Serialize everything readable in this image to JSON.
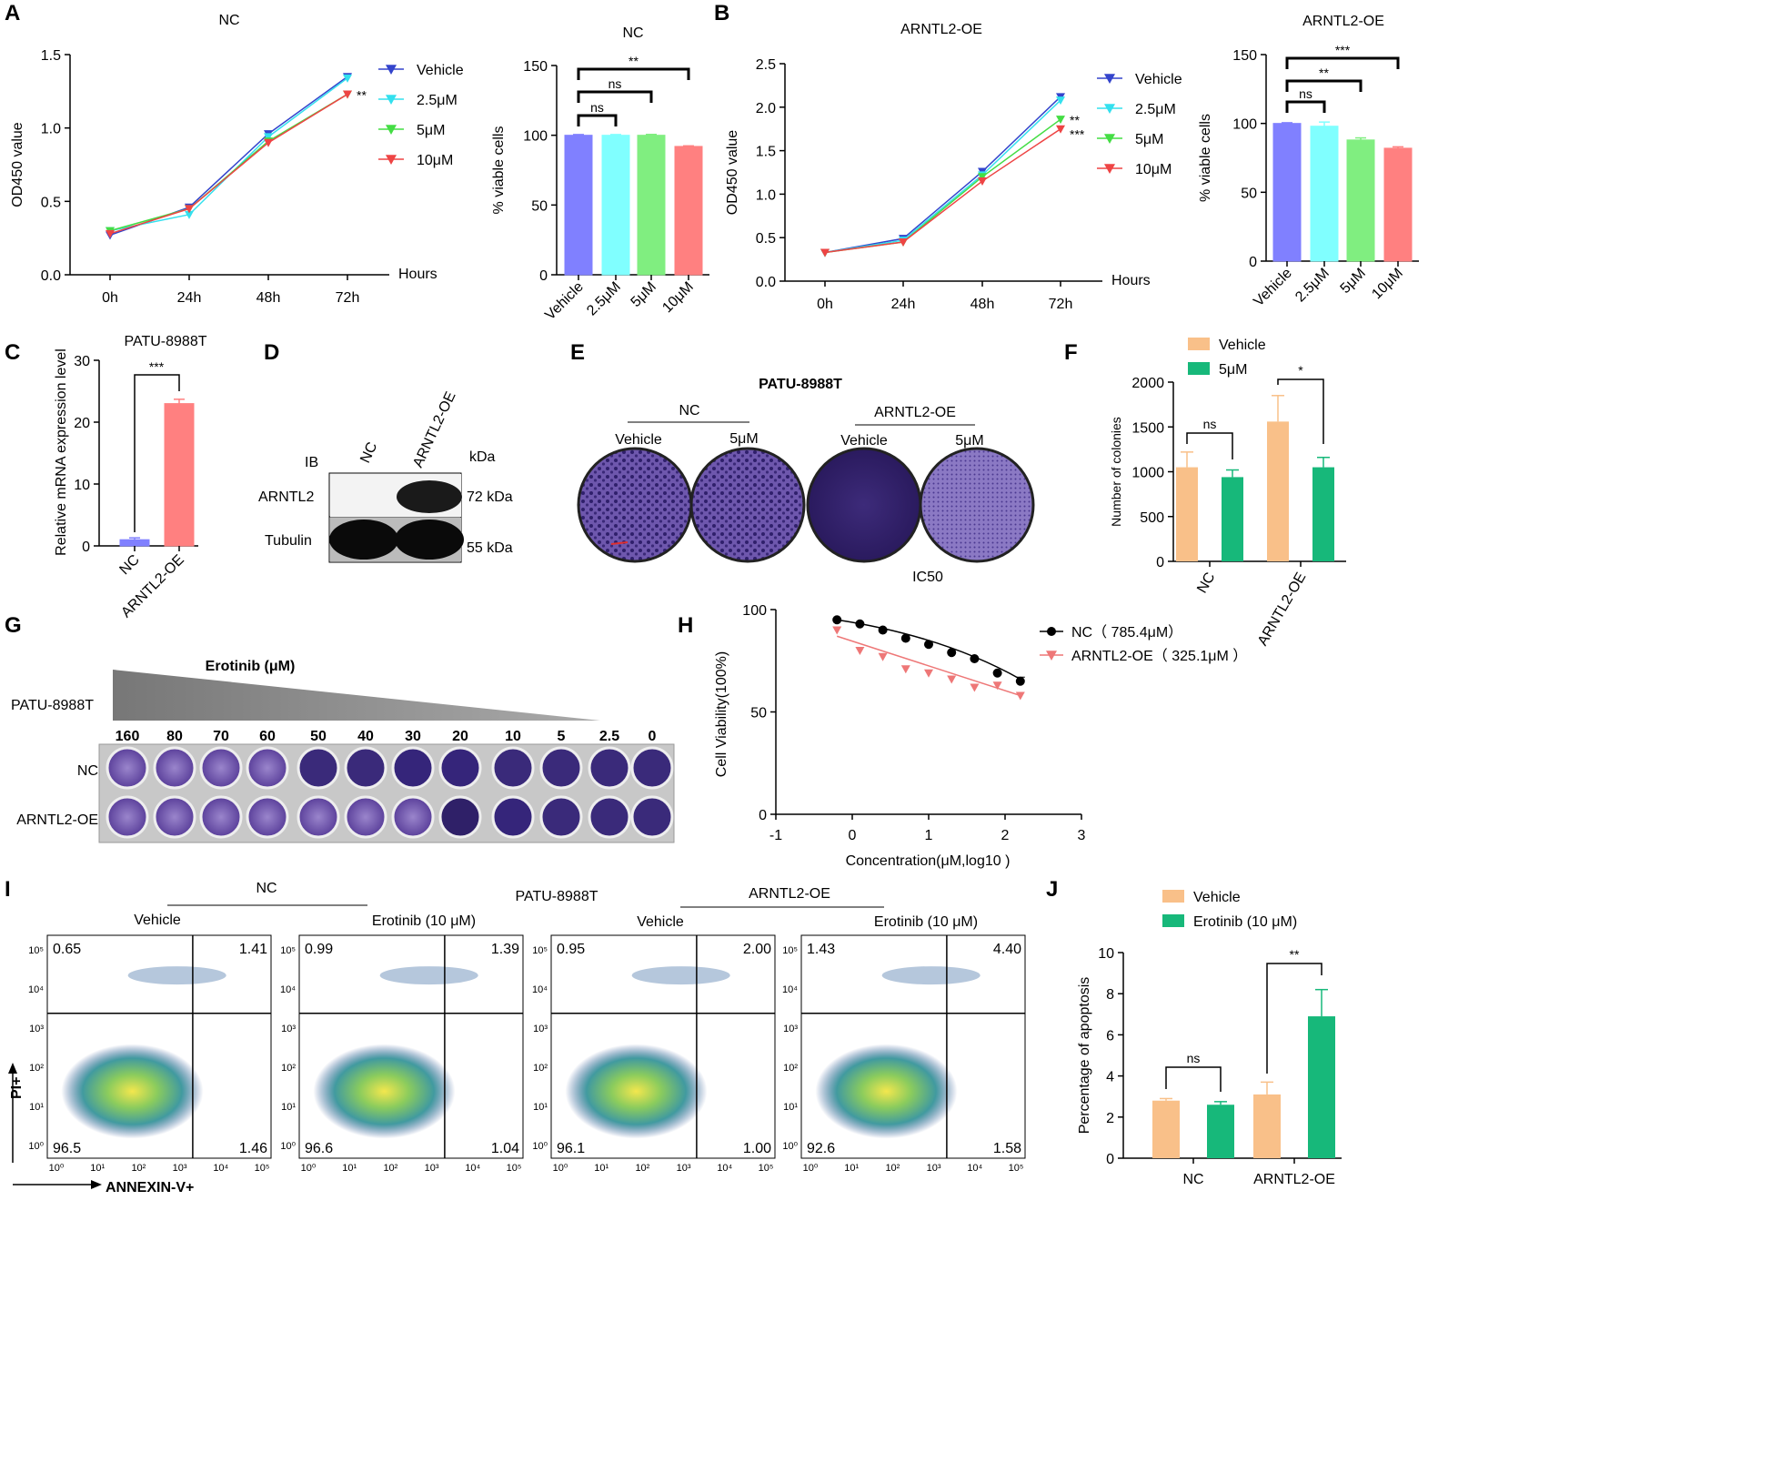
{
  "panels": {
    "A": {
      "letter": "A",
      "line": {
        "title": "NC",
        "ylabel": "OD450 value",
        "xlabel": "Hours",
        "categories": [
          "0h",
          "24h",
          "48h",
          "72h"
        ],
        "yticks": [
          "0.0",
          "0.5",
          "1.0",
          "1.5"
        ],
        "sig": "**"
      },
      "bar": {
        "title": "NC",
        "ylabel": "% viable cells",
        "yticks": [
          "0",
          "50",
          "100",
          "150"
        ],
        "brackets": [
          "ns",
          "ns",
          "**"
        ]
      }
    },
    "B": {
      "letter": "B",
      "line": {
        "title": "ARNTL2-OE",
        "ylabel": "OD450 value",
        "xlabel": "Hours",
        "categories": [
          "0h",
          "24h",
          "48h",
          "72h"
        ],
        "yticks": [
          "0.0",
          "0.5",
          "1.0",
          "1.5",
          "2.0",
          "2.5"
        ],
        "sig5": "**",
        "sig10": "***"
      },
      "bar": {
        "title": "ARNTL2-OE",
        "ylabel": "% viable cells",
        "yticks": [
          "0",
          "50",
          "100",
          "150"
        ],
        "brackets": [
          "ns",
          "**",
          "***"
        ]
      }
    },
    "C": {
      "letter": "C",
      "title": "PATU-8988T",
      "ylabel": "Relative mRNA expression level",
      "yticks": [
        "0",
        "10",
        "20",
        "30"
      ],
      "categories": [
        "NC",
        "ARNTL2-OE"
      ],
      "sig": "***"
    },
    "D": {
      "letter": "D",
      "ib": "IB",
      "kda": "kDa",
      "lanes": [
        "NC",
        "ARNTL2-OE"
      ],
      "bands": [
        {
          "name": "ARNTL2",
          "size": "72 kDa"
        },
        {
          "name": "Tubulin",
          "size": "55 kDa"
        }
      ]
    },
    "E": {
      "letter": "E",
      "title": "PATU-8988T",
      "groups": [
        "NC",
        "ARNTL2-OE"
      ],
      "conditions": [
        "Vehicle",
        "5μM",
        "Vehicle",
        "5μM"
      ],
      "footer": "IC50"
    },
    "F": {
      "letter": "F",
      "ylabel": "Number of colonies",
      "yticks": [
        "0",
        "500",
        "1000",
        "1500",
        "2000"
      ],
      "categories": [
        "NC",
        "ARNTL2-OE"
      ],
      "legend": [
        "Vehicle",
        "5μM"
      ],
      "sigs": [
        "ns",
        "*"
      ]
    },
    "G": {
      "letter": "G",
      "title": "Erotinib (μM)",
      "cell": "PATU-8988T",
      "concentrations": [
        "160",
        "80",
        "70",
        "60",
        "50",
        "40",
        "30",
        "20",
        "10",
        "5",
        "2.5",
        "0"
      ],
      "rows": [
        "NC",
        "ARNTL2-OE"
      ]
    },
    "H": {
      "letter": "H",
      "ylabel": "Cell Viability(100%)",
      "xlabel": "Concentration(μM,log10 )",
      "xticks": [
        "-1",
        "0",
        "1",
        "2",
        "3"
      ],
      "yticks": [
        "0",
        "50",
        "100"
      ],
      "legend": [
        "NC（ 785.4μM）",
        "ARNTL2-OE（ 325.1μM ）"
      ]
    },
    "I": {
      "letter": "I",
      "title": "PATU-8988T",
      "groups": [
        "NC",
        "ARNTL2-OE"
      ],
      "conditions": [
        "Vehicle",
        "Erotinib (10 μM)",
        "Vehicle",
        "Erotinib (10 μM)"
      ],
      "xaxis": "ANNEXIN-V+",
      "yaxis": "PI+",
      "quadrants": [
        {
          "ul": "0.65",
          "ur": "1.41",
          "ll": "96.5",
          "lr": "1.46"
        },
        {
          "ul": "0.99",
          "ur": "1.39",
          "ll": "96.6",
          "lr": "1.04"
        },
        {
          "ul": "0.95",
          "ur": "2.00",
          "ll": "96.1",
          "lr": "1.00"
        },
        {
          "ul": "1.43",
          "ur": "4.40",
          "ll": "92.6",
          "lr": "1.58"
        }
      ]
    },
    "J": {
      "letter": "J",
      "ylabel": "Percentage of apoptosis",
      "yticks": [
        "0",
        "2",
        "4",
        "6",
        "8",
        "10"
      ],
      "categories": [
        "NC",
        "ARNTL2-OE"
      ],
      "legend": [
        "Vehicle",
        "Erotinib (10 μM)"
      ],
      "sigs": [
        "ns",
        "**"
      ]
    }
  },
  "chart_data": [
    {
      "panel": "A-left",
      "type": "line",
      "title": "NC",
      "xlabel": "Hours",
      "ylabel": "OD450 value",
      "x": [
        "0h",
        "24h",
        "48h",
        "72h"
      ],
      "ylim": [
        0,
        1.5
      ],
      "grid": false,
      "legend": "right",
      "series": [
        {
          "name": "Vehicle",
          "values": [
            0.27,
            0.46,
            0.96,
            1.35
          ],
          "color": "#3344cc"
        },
        {
          "name": "2.5μM",
          "values": [
            0.3,
            0.41,
            0.94,
            1.34
          ],
          "color": "#33e0ee"
        },
        {
          "name": "5μM",
          "values": [
            0.3,
            0.45,
            0.91,
            1.23
          ],
          "color": "#44dd44"
        },
        {
          "name": "10μM",
          "values": [
            0.28,
            0.45,
            0.9,
            1.23
          ],
          "color": "#ee4444"
        }
      ]
    },
    {
      "panel": "A-right",
      "type": "bar",
      "title": "NC",
      "ylabel": "% viable cells",
      "categories": [
        "Vehicle",
        "2.5μM",
        "5μM",
        "10μM"
      ],
      "values": [
        100,
        100,
        100,
        92
      ],
      "errors": [
        0.5,
        0.5,
        0.6,
        0.4
      ],
      "ylim": [
        0,
        150
      ],
      "colors": [
        "#8080ff",
        "#80ffff",
        "#80ee80",
        "#ff8080"
      ]
    },
    {
      "panel": "B-left",
      "type": "line",
      "title": "ARNTL2-OE",
      "xlabel": "Hours",
      "ylabel": "OD450 value",
      "x": [
        "0h",
        "24h",
        "48h",
        "72h"
      ],
      "ylim": [
        0,
        2.5
      ],
      "grid": false,
      "legend": "right",
      "series": [
        {
          "name": "Vehicle",
          "values": [
            0.33,
            0.49,
            1.26,
            2.12
          ],
          "color": "#3344cc"
        },
        {
          "name": "2.5μM",
          "values": [
            0.33,
            0.47,
            1.22,
            2.08
          ],
          "color": "#33e0ee"
        },
        {
          "name": "5μM",
          "values": [
            0.33,
            0.45,
            1.2,
            1.86
          ],
          "color": "#44dd44"
        },
        {
          "name": "10μM",
          "values": [
            0.33,
            0.45,
            1.15,
            1.75
          ],
          "color": "#ee4444"
        }
      ]
    },
    {
      "panel": "B-right",
      "type": "bar",
      "title": "ARNTL2-OE",
      "ylabel": "% viable cells",
      "categories": [
        "Vehicle",
        "2.5μM",
        "5μM",
        "10μM"
      ],
      "values": [
        100,
        98,
        88,
        82
      ],
      "errors": [
        0.5,
        3,
        1.5,
        1
      ],
      "ylim": [
        0,
        150
      ],
      "colors": [
        "#8080ff",
        "#80ffff",
        "#80ee80",
        "#ff8080"
      ]
    },
    {
      "panel": "C",
      "type": "bar",
      "title": "PATU-8988T",
      "ylabel": "Relative mRNA expression level",
      "categories": [
        "NC",
        "ARNTL2-OE"
      ],
      "values": [
        1.0,
        23.0
      ],
      "errors": [
        0.3,
        0.7
      ],
      "ylim": [
        0,
        30
      ],
      "colors": [
        "#8080ff",
        "#ff8080"
      ]
    },
    {
      "panel": "F",
      "type": "bar",
      "ylabel": "Number of colonies",
      "categories": [
        "NC",
        "ARNTL2-OE"
      ],
      "series": [
        {
          "name": "Vehicle",
          "values": [
            1050,
            1560
          ],
          "errors": [
            170,
            290
          ],
          "color": "#f9c089"
        },
        {
          "name": "5μM",
          "values": [
            940,
            1050
          ],
          "errors": [
            80,
            110
          ],
          "color": "#17b87a"
        }
      ],
      "ylim": [
        0,
        2000
      ],
      "legend": "top"
    },
    {
      "panel": "H",
      "type": "scatter",
      "xlabel": "Concentration(μM,log10 )",
      "ylabel": "Cell Viability(100%)",
      "xlim": [
        -1,
        3
      ],
      "ylim": [
        0,
        100
      ],
      "legend": "top-right",
      "series": [
        {
          "name": "NC（ 785.4μM）",
          "x": [
            -0.2,
            0.1,
            0.4,
            0.7,
            1.0,
            1.3,
            1.6,
            1.9,
            2.2
          ],
          "values": [
            95,
            93,
            90,
            86,
            83,
            79,
            76,
            69,
            65
          ],
          "color": "#000000"
        },
        {
          "name": "ARNTL2-OE（ 325.1μM ）",
          "x": [
            -0.2,
            0.1,
            0.4,
            0.7,
            1.0,
            1.3,
            1.6,
            1.9,
            2.2
          ],
          "values": [
            90,
            80,
            77,
            71,
            69,
            66,
            62,
            63,
            58
          ],
          "color": "#ee7777"
        }
      ]
    },
    {
      "panel": "J",
      "type": "bar",
      "ylabel": "Percentage of apoptosis",
      "categories": [
        "NC",
        "ARNTL2-OE"
      ],
      "series": [
        {
          "name": "Vehicle",
          "values": [
            2.8,
            3.1
          ],
          "errors": [
            0.1,
            0.6
          ],
          "color": "#f9c089"
        },
        {
          "name": "Erotinib (10 μM)",
          "values": [
            2.6,
            6.9
          ],
          "errors": [
            0.15,
            1.3
          ],
          "color": "#17b87a"
        }
      ],
      "ylim": [
        0,
        10
      ],
      "legend": "top"
    }
  ]
}
